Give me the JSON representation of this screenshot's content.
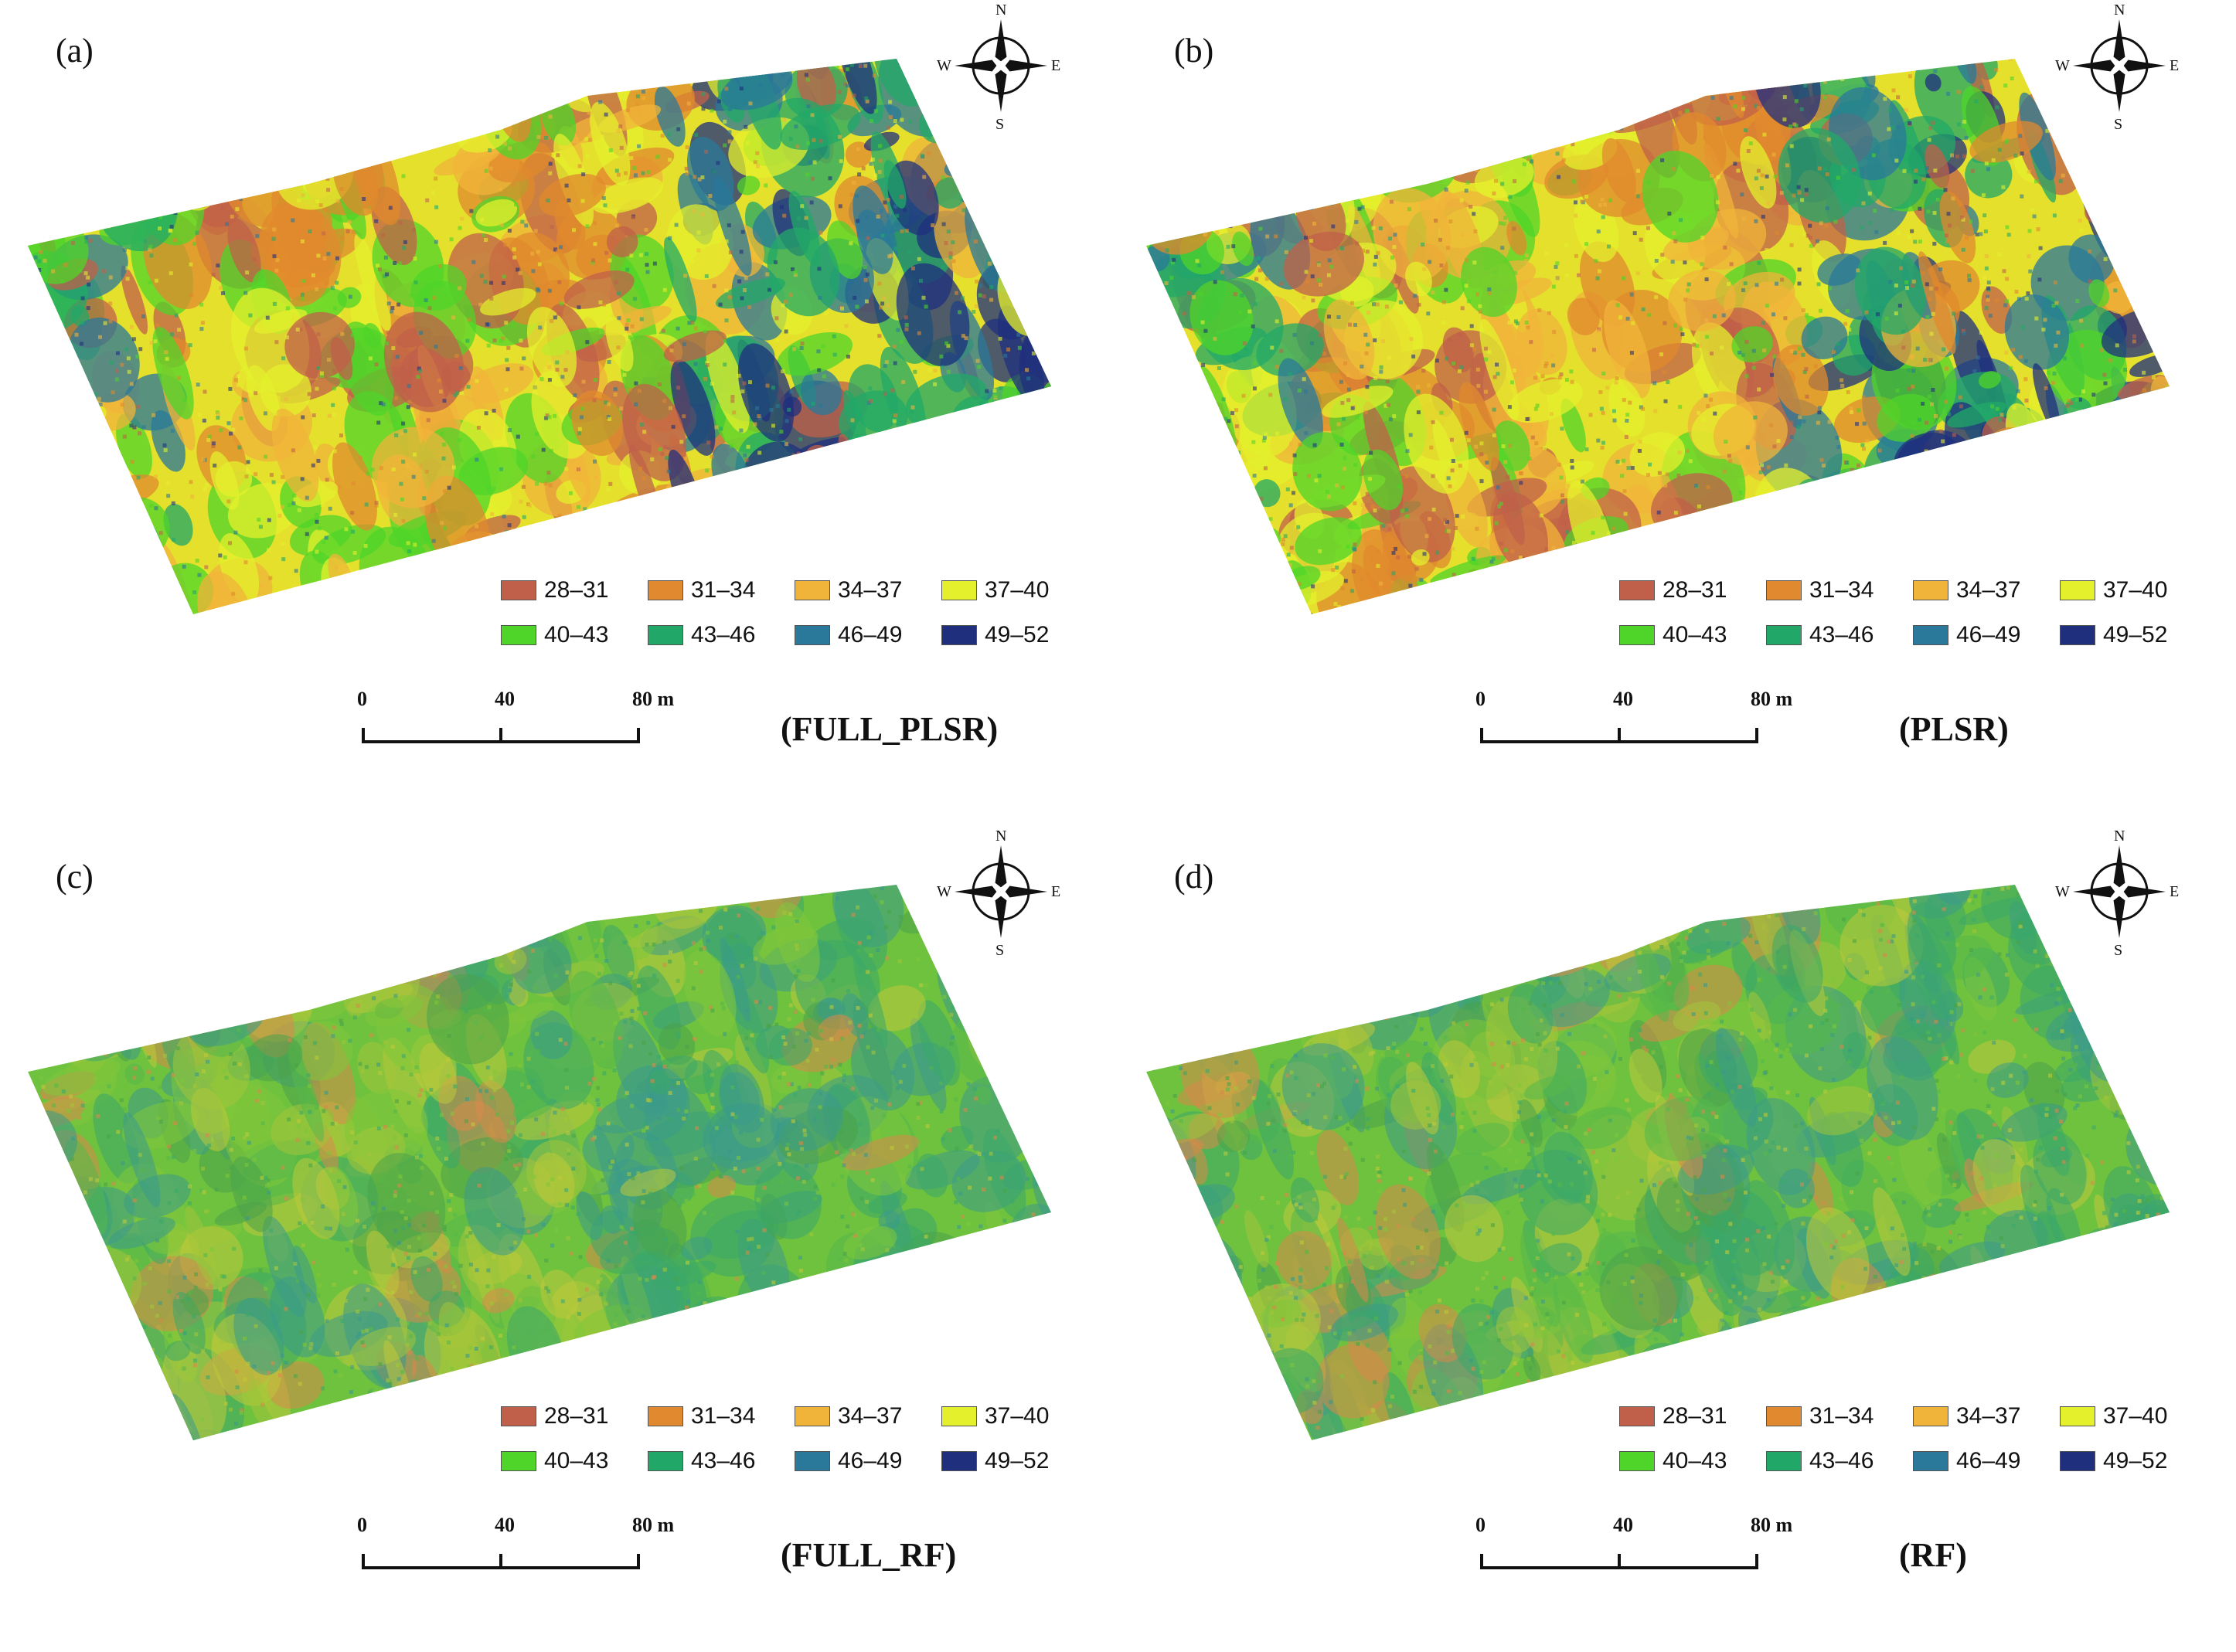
{
  "figure": {
    "panels": [
      {
        "id": "a",
        "label": "(a)",
        "model": "(FULL_PLSR)",
        "style": "strong"
      },
      {
        "id": "b",
        "label": "(b)",
        "model": "(PLSR)",
        "style": "strong"
      },
      {
        "id": "c",
        "label": "(c)",
        "model": "(FULL_RF)",
        "style": "soft"
      },
      {
        "id": "d",
        "label": "(d)",
        "model": "(RF)",
        "style": "soft"
      }
    ],
    "compass": {
      "n": "N",
      "s": "S",
      "e": "E",
      "w": "W"
    },
    "scale_bar": {
      "ticks": [
        "0",
        "40",
        "80 m"
      ]
    },
    "legend": [
      {
        "range": "28–31",
        "color": "#c0604a"
      },
      {
        "range": "31–34",
        "color": "#e0892e"
      },
      {
        "range": "34–37",
        "color": "#f0b43a"
      },
      {
        "range": "37–40",
        "color": "#e4f02c"
      },
      {
        "range": "40–43",
        "color": "#4fd42a"
      },
      {
        "range": "43–46",
        "color": "#21a868"
      },
      {
        "range": "46–49",
        "color": "#2a789a"
      },
      {
        "range": "49–52",
        "color": "#1f2f7e"
      }
    ]
  }
}
